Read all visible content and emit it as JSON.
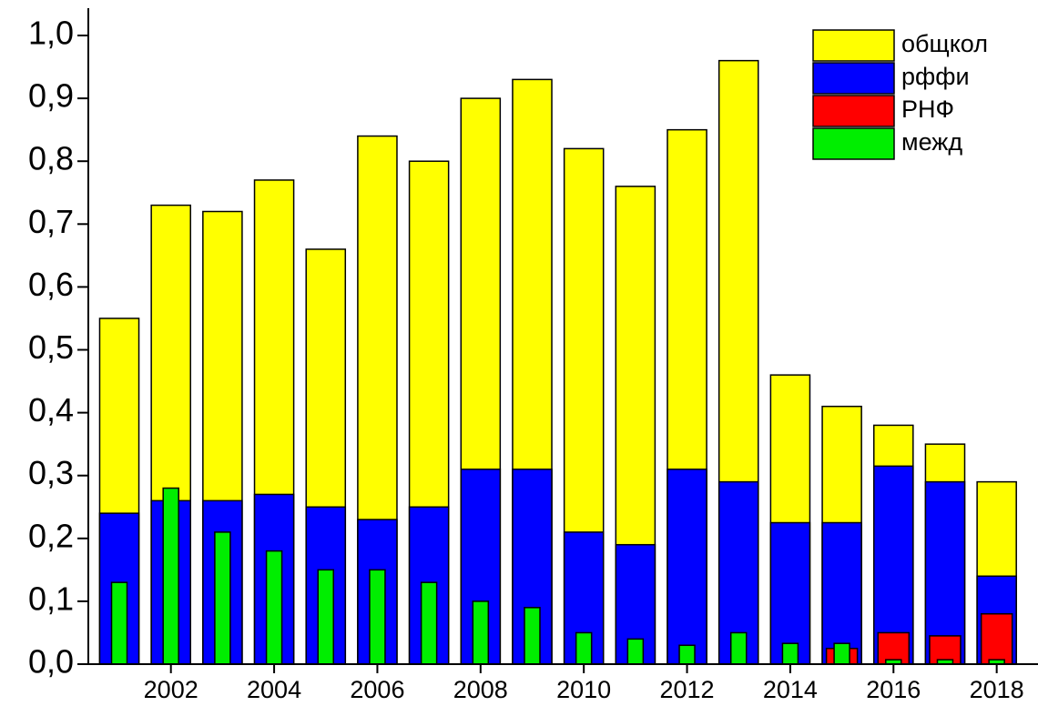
{
  "chart_data": {
    "type": "bar",
    "x": [
      2001,
      2002,
      2003,
      2004,
      2005,
      2006,
      2007,
      2008,
      2009,
      2010,
      2011,
      2012,
      2013,
      2014,
      2015,
      2016,
      2017,
      2018
    ],
    "series": [
      {
        "name": "общкол",
        "color": "#ffff00",
        "values": [
          0.55,
          0.73,
          0.72,
          0.77,
          0.66,
          0.84,
          0.8,
          0.9,
          0.93,
          0.82,
          0.76,
          0.85,
          0.96,
          0.46,
          0.41,
          0.38,
          0.35,
          0.29
        ]
      },
      {
        "name": "рффи",
        "color": "#0000ff",
        "values": [
          0.24,
          0.26,
          0.26,
          0.27,
          0.25,
          0.23,
          0.25,
          0.31,
          0.31,
          0.21,
          0.19,
          0.31,
          0.29,
          0.225,
          0.225,
          0.315,
          0.29,
          0.14
        ]
      },
      {
        "name": "РНФ",
        "color": "#ff0000",
        "values": [
          null,
          null,
          null,
          null,
          null,
          null,
          null,
          null,
          null,
          null,
          null,
          null,
          null,
          null,
          0.025,
          0.05,
          0.045,
          0.08
        ]
      },
      {
        "name": "межд",
        "color": "#00ee00",
        "values": [
          0.13,
          0.28,
          0.21,
          0.18,
          0.15,
          0.15,
          0.13,
          0.1,
          0.09,
          0.05,
          0.04,
          0.03,
          0.05,
          0.033,
          0.033,
          0.007,
          0.007,
          0.007
        ]
      }
    ],
    "xlim": [
      2000.4,
      2018.8
    ],
    "xticks": [
      2002,
      2004,
      2006,
      2008,
      2010,
      2012,
      2014,
      2016,
      2018
    ],
    "ylim": [
      0,
      1.0
    ],
    "yticks": [
      {
        "value": 0,
        "label": "0,0"
      },
      {
        "value": 0.1,
        "label": "0,1"
      },
      {
        "value": 0.2,
        "label": "0,2"
      },
      {
        "value": 0.3,
        "label": "0,3"
      },
      {
        "value": 0.4,
        "label": "0,4"
      },
      {
        "value": 0.5,
        "label": "0,5"
      },
      {
        "value": 0.6,
        "label": "0,6"
      },
      {
        "value": 0.7,
        "label": "0,7"
      },
      {
        "value": 0.8,
        "label": "0,8"
      },
      {
        "value": 0.9,
        "label": "0,9"
      },
      {
        "value": 1.0,
        "label": "1,0"
      }
    ],
    "legend": "top-right"
  }
}
